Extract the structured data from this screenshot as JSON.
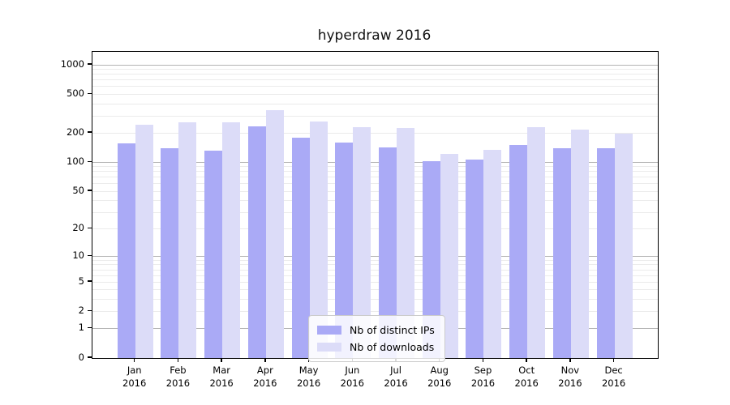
{
  "title": "hyperdraw 2016",
  "legend": {
    "items": [
      {
        "label": "Nb of distinct IPs",
        "color": "#aaaaf6"
      },
      {
        "label": "Nb of downloads",
        "color": "#dcdcf8"
      }
    ]
  },
  "chart_data": {
    "type": "bar",
    "title": "hyperdraw 2016",
    "categories": [
      "Jan 2016",
      "Feb 2016",
      "Mar 2016",
      "Apr 2016",
      "May 2016",
      "Jun 2016",
      "Jul 2016",
      "Aug 2016",
      "Sep 2016",
      "Oct 2016",
      "Nov 2016",
      "Dec 2016"
    ],
    "series": [
      {
        "name": "Nb of distinct IPs",
        "color": "#aaaaf6",
        "values": [
          157,
          139,
          131,
          232,
          180,
          159,
          141,
          103,
          107,
          152,
          140,
          140
        ]
      },
      {
        "name": "Nb of downloads",
        "color": "#dcdcf8",
        "values": [
          245,
          256,
          258,
          346,
          261,
          228,
          225,
          123,
          135,
          228,
          215,
          197
        ]
      }
    ],
    "xlabel": "",
    "ylabel": "",
    "yscale": "log(1+y)",
    "y_ticks": [
      0,
      1,
      2,
      5,
      10,
      20,
      50,
      100,
      200,
      500,
      1000
    ],
    "y_major_gridlines": [
      1,
      10,
      100,
      1000
    ],
    "ylim": [
      0,
      1360
    ],
    "grid": true,
    "legend_position": "lower center",
    "grid_major_color": "#b3b3b3",
    "grid_minor_color": "#ebebeb"
  }
}
